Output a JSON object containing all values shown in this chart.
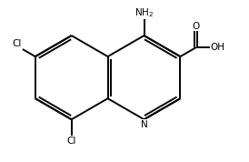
{
  "bg_color": "#ffffff",
  "line_color": "#000000",
  "text_color": "#000000",
  "line_width": 1.4,
  "font_size": 7.5,
  "bl": 0.3,
  "cx_r": 0.1,
  "cy_r": 0.0,
  "figsize": [
    2.74,
    1.78
  ],
  "dpi": 100,
  "xlim": [
    -0.8,
    0.72
  ],
  "ylim": [
    -0.6,
    0.55
  ]
}
